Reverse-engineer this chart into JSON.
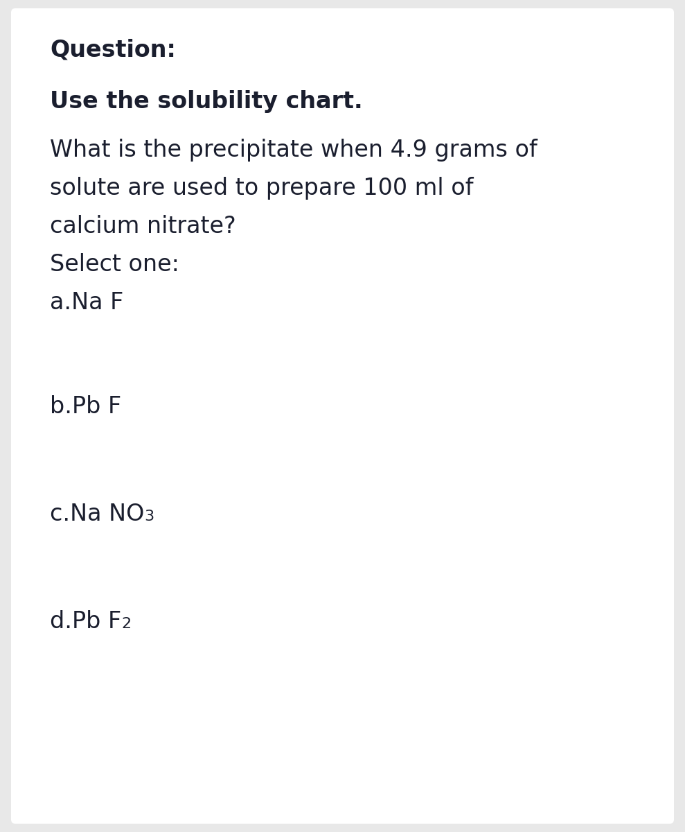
{
  "background_color": "#e8e8e8",
  "card_color": "#ffffff",
  "text_color": "#1a1e2e",
  "question_label": "Question:",
  "bold_line": "Use the solubility chart.",
  "body_lines": [
    "What is the precipitate when 4.9 grams of",
    "solute are used to prepare 100 ml of",
    "calcium nitrate?",
    "Select one:",
    "a.Na F"
  ],
  "option_b": "b.Pb F",
  "option_c_main": "c.Na NO",
  "option_c_sub": "3",
  "option_d_main": "d.Pb F",
  "option_d_sub": "2",
  "fs_bold": 24,
  "fs_body": 24,
  "fs_sub": 16
}
